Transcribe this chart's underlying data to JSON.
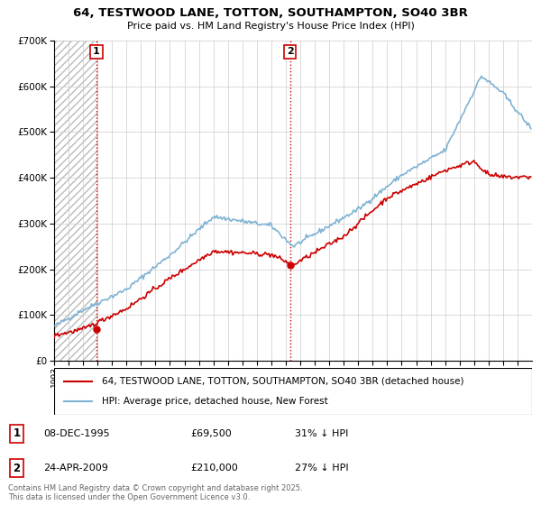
{
  "title_line1": "64, TESTWOOD LANE, TOTTON, SOUTHAMPTON, SO40 3BR",
  "title_line2": "Price paid vs. HM Land Registry's House Price Index (HPI)",
  "legend_line1": "64, TESTWOOD LANE, TOTTON, SOUTHAMPTON, SO40 3BR (detached house)",
  "legend_line2": "HPI: Average price, detached house, New Forest",
  "annotation1_label": "1",
  "annotation1_date": "08-DEC-1995",
  "annotation1_price": "£69,500",
  "annotation1_hpi": "31% ↓ HPI",
  "annotation2_label": "2",
  "annotation2_date": "24-APR-2009",
  "annotation2_price": "£210,000",
  "annotation2_hpi": "27% ↓ HPI",
  "footer": "Contains HM Land Registry data © Crown copyright and database right 2025.\nThis data is licensed under the Open Government Licence v3.0.",
  "line1_color": "#cc0000",
  "line2_color": "#7fb3d3",
  "grid_color": "#cccccc",
  "vline_color": "#cc0000",
  "ylim": [
    0,
    700000
  ],
  "yticks": [
    0,
    100000,
    200000,
    300000,
    400000,
    500000,
    600000,
    700000
  ],
  "xlim_start": 1993,
  "xlim_end": 2026,
  "hatch_start": 1993,
  "hatch_end": 1996.0,
  "sale1_year": 1995.917,
  "sale1_price": 69500,
  "sale2_year": 2009.292,
  "sale2_price": 210000,
  "background_color": "#ffffff"
}
